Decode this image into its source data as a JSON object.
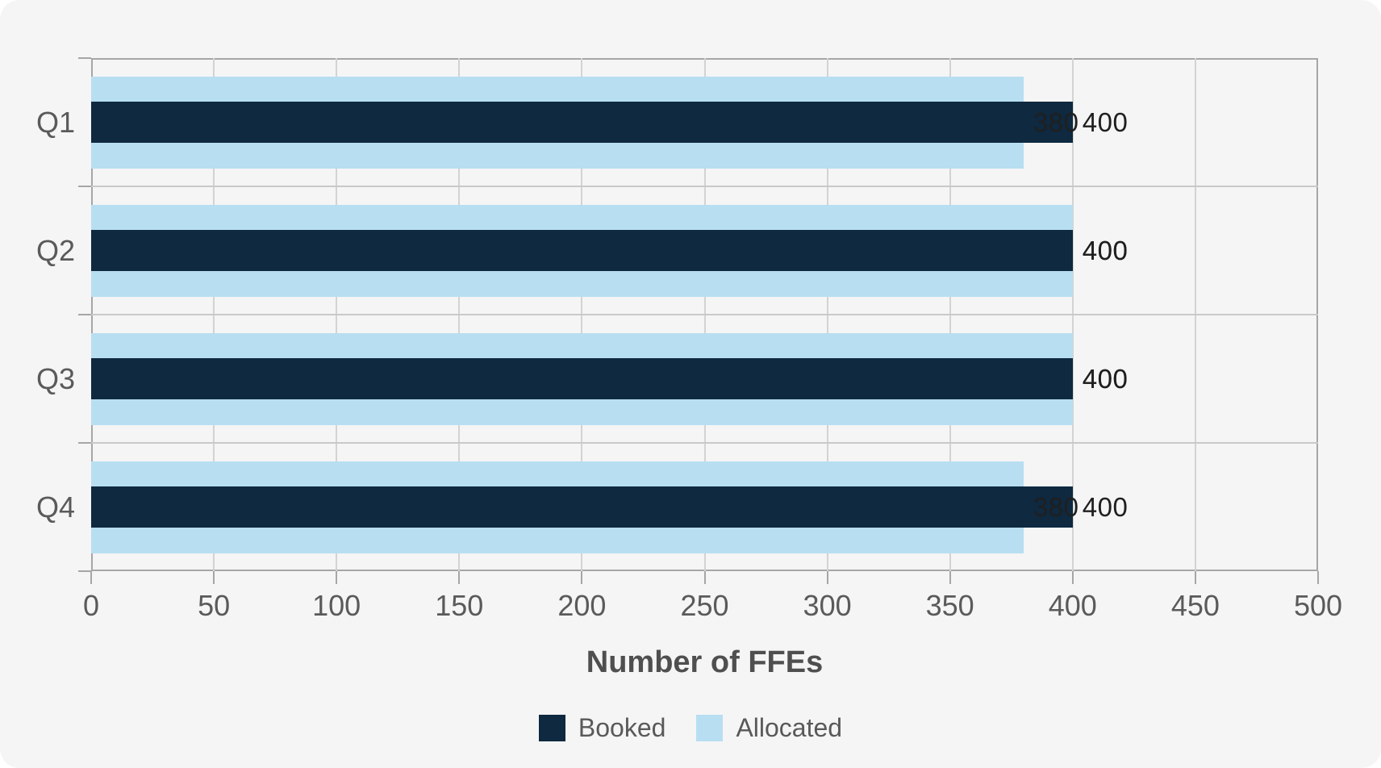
{
  "chart_data": {
    "type": "bar",
    "orientation": "horizontal",
    "title": "",
    "categories": [
      "Q1",
      "Q2",
      "Q3",
      "Q4"
    ],
    "series": [
      {
        "name": "Booked",
        "color": "#0e2940",
        "values": [
          400,
          400,
          400,
          400
        ]
      },
      {
        "name": "Allocated",
        "color": "#b8def2",
        "values": [
          380,
          400,
          400,
          380
        ]
      }
    ],
    "xlabel": "Number of FFEs",
    "ylabel": "",
    "xlim": [
      0,
      500
    ],
    "xticks": [
      0,
      50,
      100,
      150,
      200,
      250,
      300,
      350,
      400,
      450,
      500
    ],
    "grid": true,
    "value_labels_shown": true,
    "legend_position": "bottom"
  },
  "colors": {
    "card_background": "#f5f5f5",
    "page_background": "#ffffff",
    "axis_line": "#a6a6a6",
    "gridline_vertical": "#d3d3d3",
    "gridline_horizontal": "#c9c9c9",
    "tick_text": "#5a5a5a",
    "value_text": "#1f1f1f",
    "axis_title_text": "#4f4f4f",
    "legend_text": "#595959",
    "booked_bar": "#0e2940",
    "allocated_bar": "#b8def2"
  }
}
